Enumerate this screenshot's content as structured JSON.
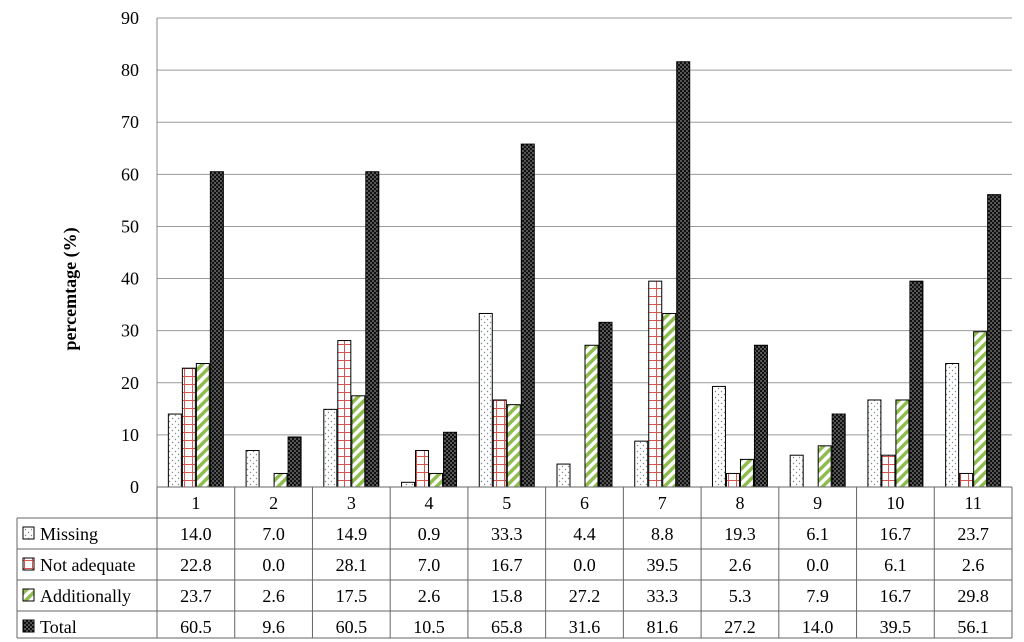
{
  "chart_data": {
    "type": "bar",
    "categories": [
      "1",
      "2",
      "3",
      "4",
      "5",
      "6",
      "7",
      "8",
      "9",
      "10",
      "11"
    ],
    "series": [
      {
        "name": "Missing",
        "pattern": "dots",
        "color": "#9aa3a8",
        "values": [
          "14.0",
          "7.0",
          "14.9",
          "0.9",
          "33.3",
          "4.4",
          "8.8",
          "19.3",
          "6.1",
          "16.7",
          "23.7"
        ]
      },
      {
        "name": "Not adequate",
        "pattern": "grid",
        "color": "#d9534f",
        "values": [
          "22.8",
          "0.0",
          "28.1",
          "7.0",
          "16.7",
          "0.0",
          "39.5",
          "2.6",
          "0.0",
          "6.1",
          "2.6"
        ]
      },
      {
        "name": "Additionally",
        "pattern": "diagonal",
        "color": "#8fbc4f",
        "values": [
          "23.7",
          "2.6",
          "17.5",
          "2.6",
          "15.8",
          "27.2",
          "33.3",
          "5.3",
          "7.9",
          "16.7",
          "29.8"
        ]
      },
      {
        "name": "Total",
        "pattern": "dense",
        "color": "#111111",
        "values": [
          "60.5",
          "9.6",
          "60.5",
          "10.5",
          "65.8",
          "31.6",
          "81.6",
          "27.2",
          "14.0",
          "39.5",
          "56.1"
        ]
      }
    ],
    "ylabel": "percemtage (%)",
    "ylim": [
      0,
      90
    ],
    "yticks": [
      "0",
      "10",
      "20",
      "30",
      "40",
      "50",
      "60",
      "70",
      "80",
      "90"
    ],
    "grid": true,
    "legend": "data-table"
  }
}
